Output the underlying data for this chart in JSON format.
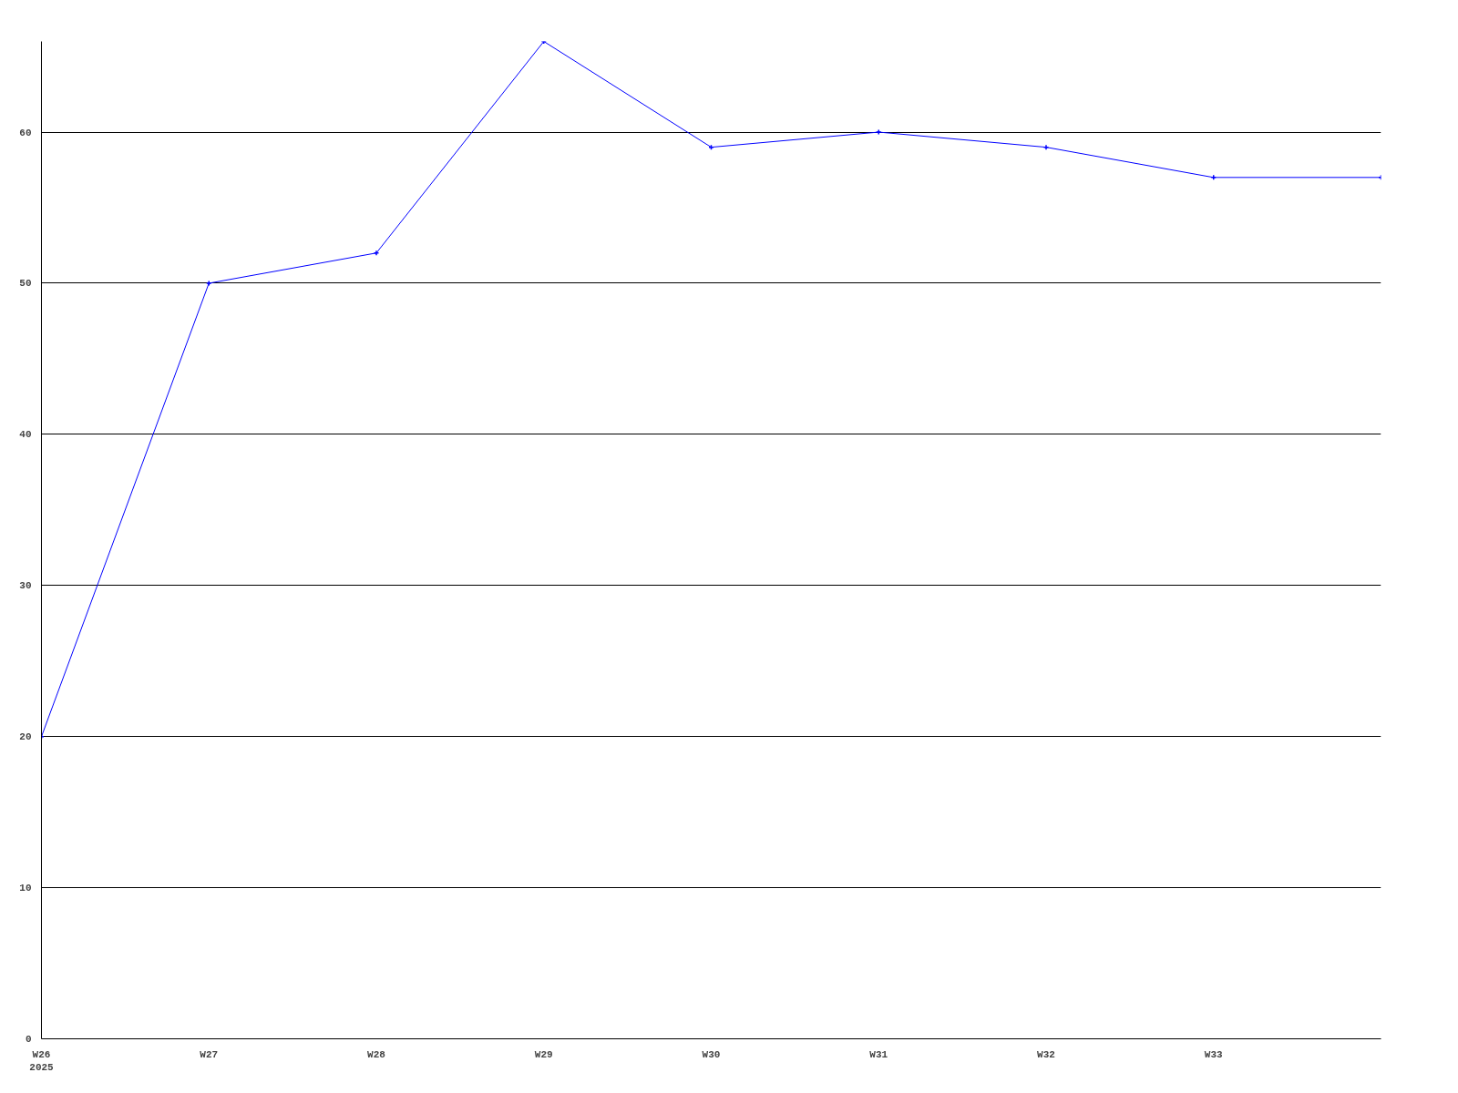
{
  "chart_data": {
    "type": "line",
    "categories": [
      "W26\n2025",
      "W27",
      "W28",
      "W29",
      "W30",
      "W31",
      "W32",
      "W33",
      null
    ],
    "series": [
      {
        "color": "#0000ff",
        "values": [
          20,
          50,
          52,
          66,
          59,
          60,
          59,
          57,
          57
        ]
      }
    ],
    "ylim": [
      0,
      66
    ],
    "yticks": [
      0,
      10,
      20,
      30,
      40,
      50,
      60
    ],
    "grid": "y",
    "marker": "cross",
    "line_style": "solid"
  }
}
